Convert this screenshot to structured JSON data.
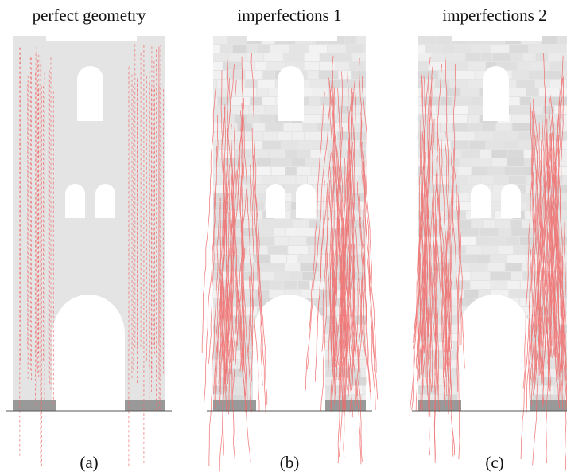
{
  "panels": [
    {
      "title": "perfect geometry",
      "caption": "(a)"
    },
    {
      "title": "imperfections 1",
      "caption": "(b)"
    },
    {
      "title": "imperfections 2",
      "caption": "(c)"
    }
  ]
}
